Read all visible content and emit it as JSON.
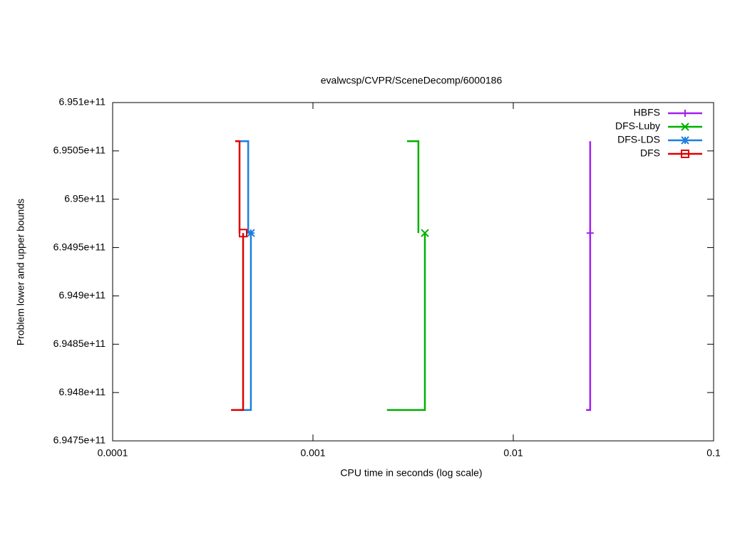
{
  "chart_data": {
    "type": "line",
    "title": "evalwcsp/CVPR/SceneDecomp/6000186",
    "x_label": "CPU time in seconds (log scale)",
    "y_label": "Problem lower and upper bounds",
    "x_scale": "log",
    "xlim": [
      0.0001,
      0.1
    ],
    "xticks": [
      0.0001,
      0.001,
      0.01,
      0.1
    ],
    "ylim": [
      694750000000,
      695100000000
    ],
    "yticks": [
      {
        "value": 694750000000,
        "label": "6.9475e+11"
      },
      {
        "value": 694800000000,
        "label": "6.948e+11"
      },
      {
        "value": 694850000000,
        "label": "6.9485e+11"
      },
      {
        "value": 694900000000,
        "label": "6.949e+11"
      },
      {
        "value": 694950000000,
        "label": "6.9495e+11"
      },
      {
        "value": 695000000000,
        "label": "6.95e+11"
      },
      {
        "value": 695050000000,
        "label": "6.9505e+11"
      },
      {
        "value": 695100000000,
        "label": "6.951e+11"
      }
    ],
    "legend": "top-right",
    "series": [
      {
        "name": "HBFS",
        "color": "#a020f0",
        "marker": "plus",
        "x": [
          0.0242,
          0.0242,
          null,
          0.0231,
          0.0242,
          0.0242
        ],
        "values": [
          695060000000,
          694965000000,
          null,
          694782000000,
          694782000000,
          694965000000
        ]
      },
      {
        "name": "DFS-Luby",
        "color": "#00b000",
        "marker": "cross",
        "x": [
          0.00295,
          0.00336,
          0.00336,
          null,
          0.00234,
          0.00362,
          0.00362
        ],
        "values": [
          695060000000,
          695060000000,
          694965000000,
          null,
          694782000000,
          694782000000,
          694965000000
        ]
      },
      {
        "name": "DFS-LDS",
        "color": "#1a7fe0",
        "marker": "star",
        "x": [
          0.00043,
          0.000475,
          0.000475,
          null,
          0.00043,
          0.00049,
          0.00049
        ],
        "values": [
          695060000000,
          695060000000,
          694965000000,
          null,
          694782000000,
          694782000000,
          694965000000
        ]
      },
      {
        "name": "DFS",
        "color": "#e00000",
        "marker": "square",
        "x": [
          0.000409,
          0.00043,
          0.00043,
          null,
          0.00039,
          0.000448,
          0.000448
        ],
        "values": [
          695060000000,
          695060000000,
          694965000000,
          null,
          694782000000,
          694782000000,
          694965000000
        ]
      }
    ]
  }
}
